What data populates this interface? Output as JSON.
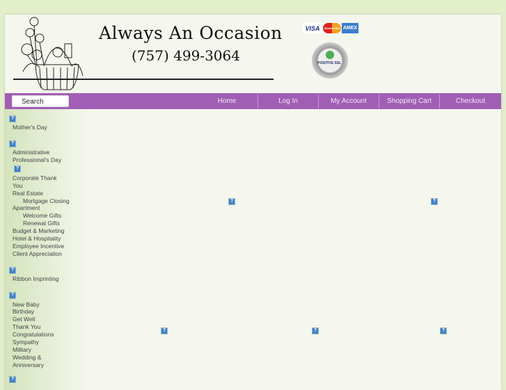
{
  "header": {
    "title": "Always An Occasion",
    "phone": "(757) 499-3064",
    "cards": [
      "VISA",
      "MasterCard",
      "AMEX"
    ],
    "seal_text": "POSITIVE SSL"
  },
  "nav": {
    "search_label": "Search",
    "items": [
      "Home",
      "Log In",
      "My Account",
      "Shopping Cart",
      "Checkout"
    ]
  },
  "sidebar": {
    "groups": [
      {
        "items": [
          {
            "label": "Mother's Day"
          }
        ]
      },
      {
        "items": [
          {
            "label": "Administrative"
          },
          {
            "label": "Professional's Day"
          }
        ]
      },
      {
        "items": [
          {
            "label": "Corporate Thank"
          },
          {
            "label": "You"
          },
          {
            "label": "Real Estate"
          },
          {
            "label": "Mortgage Closing",
            "indent": true
          },
          {
            "label": "Apartment"
          },
          {
            "label": "Welcome Gifts",
            "indent": true
          },
          {
            "label": "Renewal Gifts",
            "indent": true
          },
          {
            "label": "Budget & Marketing"
          },
          {
            "label": "Hotel & Hospitality"
          },
          {
            "label": "Employee Incentive"
          },
          {
            "label": "Client Appreciation"
          }
        ]
      },
      {
        "items": [
          {
            "label": "Ribbon Imprinting"
          }
        ]
      },
      {
        "items": [
          {
            "label": "New Baby"
          },
          {
            "label": "Birthday"
          },
          {
            "label": "Get Well"
          },
          {
            "label": "Thank You"
          },
          {
            "label": "Congratulations"
          },
          {
            "label": "Sympathy"
          },
          {
            "label": "Military"
          },
          {
            "label": "Wedding &"
          },
          {
            "label": "Anniversary"
          }
        ]
      }
    ]
  },
  "colors": {
    "nav": "#a05eb5",
    "background": "#e3eecb",
    "panel": "#f5f7ee"
  },
  "main": {
    "broken_images": 5
  }
}
